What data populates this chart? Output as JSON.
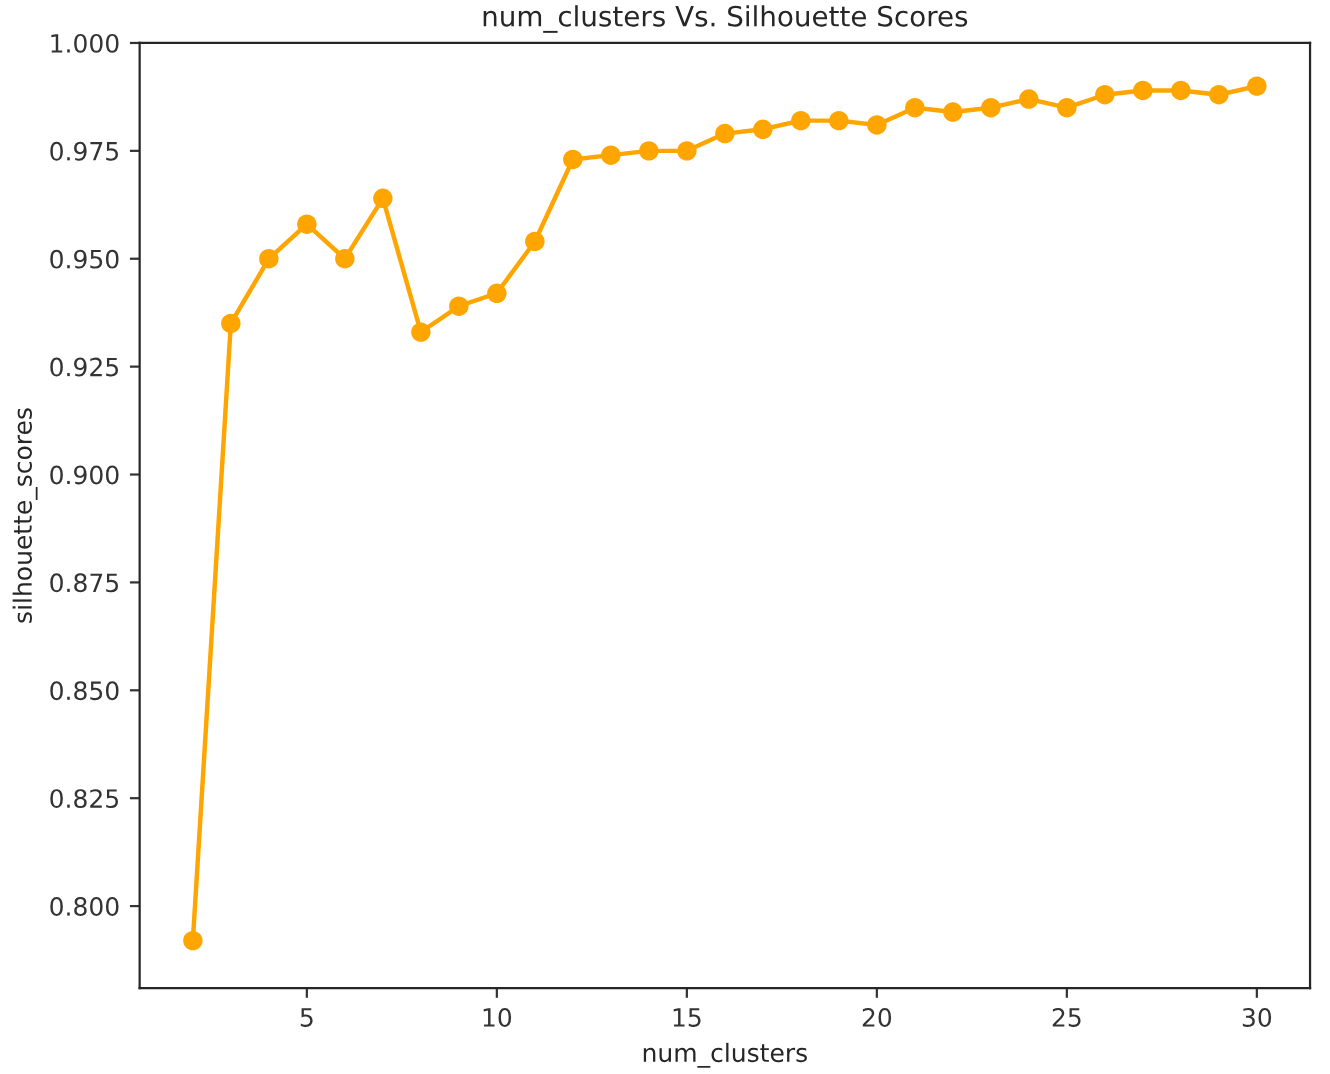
{
  "chart_data": {
    "type": "line",
    "title": "num_clusters Vs. Silhouette Scores",
    "xlabel": "num_clusters",
    "ylabel": "silhouette_scores",
    "x": [
      2,
      3,
      4,
      5,
      6,
      7,
      8,
      9,
      10,
      11,
      12,
      13,
      14,
      15,
      16,
      17,
      18,
      19,
      20,
      21,
      22,
      23,
      24,
      25,
      26,
      27,
      28,
      29,
      30
    ],
    "series": [
      {
        "color": "#ffa500",
        "values": [
          0.792,
          0.935,
          0.95,
          0.958,
          0.95,
          0.964,
          0.933,
          0.939,
          0.942,
          0.954,
          0.973,
          0.974,
          0.975,
          0.975,
          0.979,
          0.98,
          0.982,
          0.982,
          0.981,
          0.985,
          0.984,
          0.985,
          0.987,
          0.985,
          0.988,
          0.989,
          0.989,
          0.988,
          0.99
        ]
      }
    ],
    "xlim": [
      0.6,
      31.4
    ],
    "ylim": [
      0.781,
      1.0
    ],
    "xticks": [
      5,
      10,
      15,
      20,
      25,
      30
    ],
    "yticks": [
      {
        "value": 0.8,
        "label": "0.800"
      },
      {
        "value": 0.825,
        "label": "0.825"
      },
      {
        "value": 0.85,
        "label": "0.850"
      },
      {
        "value": 0.875,
        "label": "0.875"
      },
      {
        "value": 0.9,
        "label": "0.900"
      },
      {
        "value": 0.925,
        "label": "0.925"
      },
      {
        "value": 0.95,
        "label": "0.950"
      },
      {
        "value": 0.975,
        "label": "0.975"
      },
      {
        "value": 1.0,
        "label": "1.000"
      }
    ],
    "marker": "circle",
    "line_style": "solid",
    "grid": false
  }
}
